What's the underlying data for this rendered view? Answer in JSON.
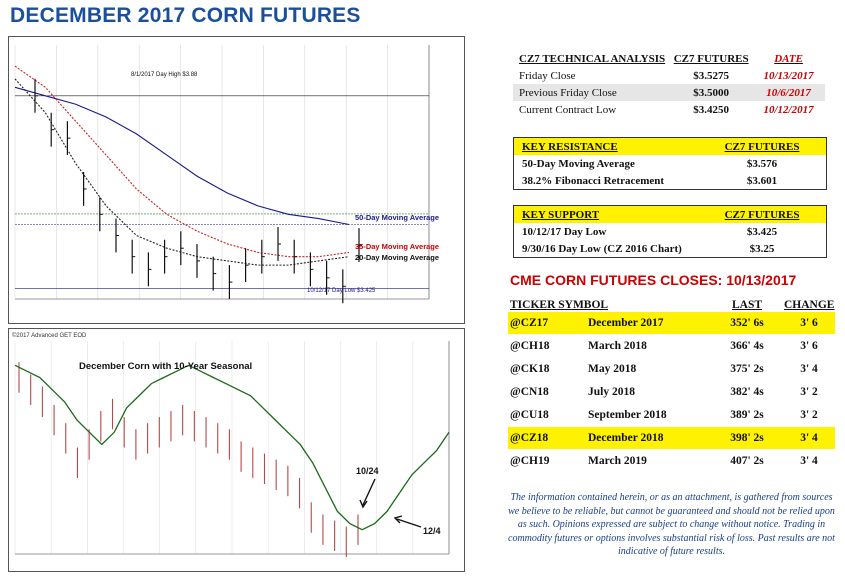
{
  "title": "DECEMBER 2017 CORN FUTURES",
  "technical": {
    "header": [
      "CZ7 TECHNICAL ANALYSIS",
      "CZ7 FUTURES",
      "DATE"
    ],
    "rows": [
      [
        "Friday Close",
        "$3.5275",
        "10/13/2017"
      ],
      [
        "Previous Friday Close",
        "$3.5000",
        "10/6/2017"
      ],
      [
        "Current Contract Low",
        "$3.4250",
        "10/12/2017"
      ]
    ]
  },
  "resistance": {
    "header": [
      "KEY RESISTANCE",
      "CZ7 FUTURES"
    ],
    "rows": [
      [
        "50-Day Moving Average",
        "$3.576"
      ],
      [
        "38.2% Fibonacci Retracement",
        "$3.601"
      ]
    ]
  },
  "support": {
    "header": [
      "KEY SUPPORT",
      "CZ7 FUTURES"
    ],
    "rows": [
      [
        "10/12/17 Day Low",
        "$3.425"
      ],
      [
        "9/30/16 Day Low (CZ 2016 Chart)",
        "$3.25"
      ]
    ]
  },
  "closes": {
    "title": "CME CORN FUTURES CLOSES:  10/13/2017",
    "header": [
      "TICKER SYMBOL",
      "",
      "LAST",
      "CHANGE"
    ],
    "rows": [
      {
        "ticker": "@CZ17",
        "month": "December 2017",
        "last": "352' 6s",
        "change": "3' 6",
        "highlight": true
      },
      {
        "ticker": "@CH18",
        "month": "March 2018",
        "last": "366' 4s",
        "change": "3' 6",
        "highlight": false
      },
      {
        "ticker": "@CK18",
        "month": "May 2018",
        "last": "375' 2s",
        "change": "3' 4",
        "highlight": false
      },
      {
        "ticker": "@CN18",
        "month": "July 2018",
        "last": "382' 4s",
        "change": "3' 2",
        "highlight": false
      },
      {
        "ticker": "@CU18",
        "month": "September 2018",
        "last": "389' 2s",
        "change": "3' 2",
        "highlight": false
      },
      {
        "ticker": "@CZ18",
        "month": "December 2018",
        "last": "398' 2s",
        "change": "3' 4",
        "highlight": true
      },
      {
        "ticker": "@CH19",
        "month": "March 2019",
        "last": "407' 2s",
        "change": "3' 4",
        "highlight": false
      }
    ]
  },
  "disclaimer": "The information contained herein, or as an attachment, is gathered from sources we believe to be reliable, but cannot be guaranteed and should not be relied upon as such. Opinions expressed are subject to change without notice. Trading in commodity futures or options involves substantial risk of loss. Past results are not indicative of future results.",
  "colors": {
    "title": "#1a4f9c",
    "red": "#cc0000",
    "highlight": "#fff200",
    "navy": "#1a1a8c",
    "green": "#1a7a1a"
  },
  "chart_data": [
    {
      "type": "line",
      "annotations": {
        "high": "8/1/2017 Day High $3.88",
        "ma50": "50-Day Moving Average",
        "ma35": "35-Day Moving Average",
        "ma20": "20-Day Moving Average",
        "low": "10/12/17 Day Low $3.425"
      },
      "series": [
        {
          "name": "50-Day Moving Average",
          "color": "#1a1a8c",
          "values": [
            3.9,
            3.88,
            3.86,
            3.83,
            3.79,
            3.74,
            3.69,
            3.65,
            3.62,
            3.6,
            3.59,
            3.576
          ]
        },
        {
          "name": "35-Day Moving Average",
          "color": "#cc2222",
          "values": [
            3.95,
            3.9,
            3.82,
            3.74,
            3.66,
            3.6,
            3.56,
            3.53,
            3.51,
            3.5,
            3.5,
            3.51
          ]
        },
        {
          "name": "20-Day Moving Average",
          "color": "#222222",
          "values": [
            3.92,
            3.84,
            3.72,
            3.62,
            3.55,
            3.52,
            3.5,
            3.49,
            3.48,
            3.48,
            3.49,
            3.5
          ]
        }
      ],
      "closes": [
        3.88,
        3.8,
        3.78,
        3.66,
        3.6,
        3.55,
        3.5,
        3.47,
        3.5,
        3.52,
        3.49,
        3.46,
        3.44,
        3.48,
        3.5,
        3.53,
        3.5,
        3.47,
        3.45,
        3.43,
        3.5275
      ],
      "levels": [
        {
          "label": "50-Day Moving Average",
          "value": 3.576,
          "color": "#1a1a8c"
        },
        {
          "label": "38.2% Fibonacci Retracement",
          "value": 3.601,
          "color": "#2a7a2a"
        }
      ]
    },
    {
      "type": "line",
      "header": "©2017 Advanced GET EOD",
      "title": "December Corn with 10-Year Seasonal",
      "annotations": [
        "10/24",
        "12/4"
      ],
      "series": [
        {
          "name": "10-Year Seasonal",
          "color": "#1a6a1a",
          "values": [
            62,
            60,
            58,
            54,
            50,
            44,
            40,
            36,
            40,
            48,
            52,
            56,
            58,
            60,
            62,
            60,
            58,
            56,
            54,
            52,
            48,
            44,
            40,
            36,
            30,
            22,
            14,
            10,
            8,
            10,
            14,
            20,
            26,
            30,
            34,
            40
          ]
        },
        {
          "name": "December Corn",
          "color": "#b34a4a",
          "values": [
            58,
            54,
            50,
            44,
            38,
            30,
            36,
            42,
            46,
            40,
            36,
            38,
            40,
            42,
            44,
            42,
            40,
            38,
            36,
            32,
            30,
            28,
            26,
            24,
            20,
            12,
            8,
            6,
            4,
            8
          ]
        }
      ]
    }
  ]
}
